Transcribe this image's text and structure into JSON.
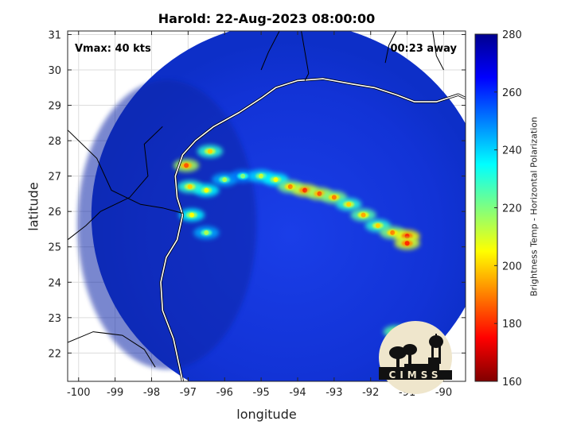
{
  "chart_data": {
    "type": "heatmap",
    "title": "Harold: 22-Aug-2023 08:00:00",
    "xlabel": "longitude",
    "ylabel": "latitude",
    "xlim": [
      -100.3,
      -89.4
    ],
    "ylim": [
      21.2,
      31.1
    ],
    "xticks": [
      -100,
      -99,
      -98,
      -97,
      -96,
      -95,
      -94,
      -93,
      -92,
      -91,
      -90
    ],
    "yticks": [
      22,
      23,
      24,
      25,
      26,
      27,
      28,
      29,
      30,
      31
    ],
    "grid": true,
    "annotations": {
      "vmax": "Vmax: 40 kts",
      "time_away": "00:23 away"
    },
    "colorbar": {
      "label": "Brightness Temp - Horizontal Polarization",
      "range": [
        160,
        280
      ],
      "ticks": [
        160,
        180,
        200,
        220,
        240,
        260,
        280
      ],
      "colormap": "jet"
    },
    "swath": {
      "center_lon": -94.2,
      "center_lat": 25.9,
      "radius_deg": 5.45
    },
    "features": [
      {
        "name": "rain band",
        "points": [
          [
            -96.5,
            26.6,
            205
          ],
          [
            -96.0,
            26.9,
            215
          ],
          [
            -95.5,
            27.0,
            220
          ],
          [
            -95.0,
            27.0,
            210
          ],
          [
            -94.6,
            26.9,
            205
          ],
          [
            -94.2,
            26.7,
            190
          ],
          [
            -93.8,
            26.6,
            180
          ],
          [
            -93.4,
            26.5,
            185
          ],
          [
            -93.0,
            26.4,
            190
          ],
          [
            -92.6,
            26.2,
            200
          ],
          [
            -92.2,
            25.9,
            195
          ],
          [
            -91.8,
            25.6,
            200
          ],
          [
            -91.4,
            25.4,
            190
          ],
          [
            -91.0,
            25.3,
            175
          ]
        ]
      },
      {
        "name": "coastal cells",
        "points": [
          [
            -97.05,
            27.3,
            185
          ],
          [
            -96.95,
            26.7,
            200
          ],
          [
            -96.4,
            27.7,
            200
          ],
          [
            -96.9,
            25.9,
            205
          ],
          [
            -96.5,
            25.4,
            215
          ],
          [
            -91.3,
            22.6,
            195
          ],
          [
            -91.0,
            25.1,
            180
          ]
        ]
      }
    ]
  }
}
